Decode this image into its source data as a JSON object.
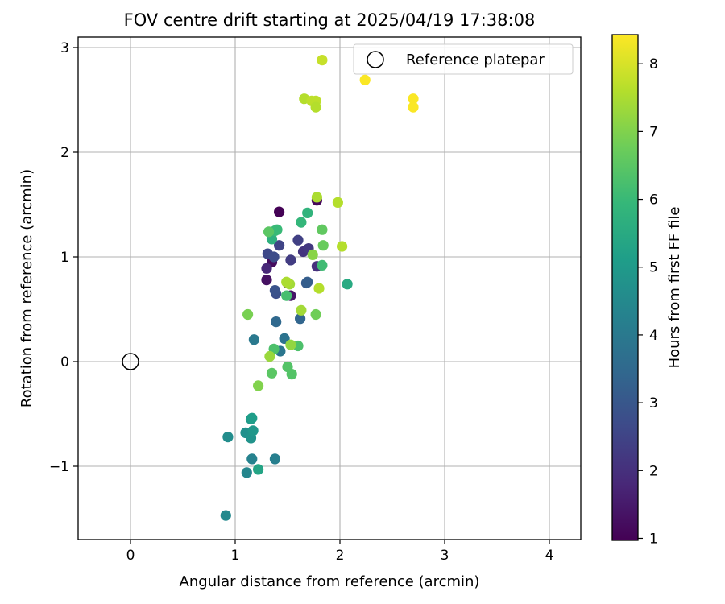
{
  "chart_data": {
    "type": "scatter",
    "title": "FOV centre drift starting at 2025/04/19 17:38:08",
    "xlabel": "Angular distance from reference (arcmin)",
    "ylabel": "Rotation from reference (arcmin)",
    "xlim": [
      -0.5,
      4.3
    ],
    "ylim": [
      -1.7,
      3.1
    ],
    "xticks": [
      0,
      1,
      2,
      3,
      4
    ],
    "yticks": [
      -1,
      0,
      1,
      2,
      3
    ],
    "xtick_labels": [
      "0",
      "1",
      "2",
      "3",
      "4"
    ],
    "ytick_labels": [
      "−1",
      "0",
      "1",
      "2",
      "3"
    ],
    "grid": true,
    "legend": {
      "placement": "top-right",
      "entries": [
        {
          "label": "Reference platepar",
          "marker": "open-circle"
        }
      ]
    },
    "reference_point": {
      "name": "Reference platepar",
      "x": 0.0,
      "y": 0.0
    },
    "colorbar": {
      "label": "Hours from first FF file",
      "colormap": "viridis",
      "range": [
        0.97,
        8.43
      ],
      "ticks": [
        1,
        2,
        3,
        4,
        5,
        6,
        7,
        8
      ],
      "tick_labels": [
        "1",
        "2",
        "3",
        "4",
        "5",
        "6",
        "7",
        "8"
      ]
    },
    "points": [
      {
        "x": 1.42,
        "y": 1.43,
        "c": 1.0
      },
      {
        "x": 1.78,
        "y": 1.54,
        "c": 1.1
      },
      {
        "x": 1.35,
        "y": 0.95,
        "c": 1.2
      },
      {
        "x": 1.3,
        "y": 0.78,
        "c": 1.3
      },
      {
        "x": 1.53,
        "y": 0.63,
        "c": 1.4
      },
      {
        "x": 1.5,
        "y": 0.75,
        "c": 1.5
      },
      {
        "x": 1.3,
        "y": 0.89,
        "c": 1.8
      },
      {
        "x": 1.78,
        "y": 0.91,
        "c": 2.0
      },
      {
        "x": 1.65,
        "y": 1.05,
        "c": 2.1
      },
      {
        "x": 1.7,
        "y": 1.08,
        "c": 2.2
      },
      {
        "x": 1.53,
        "y": 0.97,
        "c": 2.3
      },
      {
        "x": 1.6,
        "y": 1.16,
        "c": 2.4
      },
      {
        "x": 1.42,
        "y": 1.11,
        "c": 2.5
      },
      {
        "x": 1.31,
        "y": 1.03,
        "c": 2.6
      },
      {
        "x": 1.37,
        "y": 1.0,
        "c": 2.7
      },
      {
        "x": 1.39,
        "y": 0.65,
        "c": 2.8
      },
      {
        "x": 1.38,
        "y": 0.68,
        "c": 2.9
      },
      {
        "x": 1.68,
        "y": 0.75,
        "c": 3.1
      },
      {
        "x": 1.69,
        "y": 0.76,
        "c": 3.2
      },
      {
        "x": 1.62,
        "y": 0.41,
        "c": 3.4
      },
      {
        "x": 1.39,
        "y": 0.38,
        "c": 3.5
      },
      {
        "x": 1.47,
        "y": 0.22,
        "c": 3.8
      },
      {
        "x": 1.43,
        "y": 0.1,
        "c": 3.9
      },
      {
        "x": 1.18,
        "y": 0.21,
        "c": 4.0
      },
      {
        "x": 1.38,
        "y": -0.93,
        "c": 4.2
      },
      {
        "x": 1.16,
        "y": -0.93,
        "c": 4.3
      },
      {
        "x": 1.11,
        "y": -1.06,
        "c": 4.4
      },
      {
        "x": 0.91,
        "y": -1.47,
        "c": 4.5
      },
      {
        "x": 0.93,
        "y": -0.72,
        "c": 4.6
      },
      {
        "x": 1.1,
        "y": -0.68,
        "c": 4.7
      },
      {
        "x": 1.15,
        "y": -0.73,
        "c": 4.8
      },
      {
        "x": 1.17,
        "y": -0.66,
        "c": 4.9
      },
      {
        "x": 1.15,
        "y": -0.55,
        "c": 5.0
      },
      {
        "x": 1.16,
        "y": -0.54,
        "c": 5.1
      },
      {
        "x": 1.22,
        "y": -1.03,
        "c": 5.3
      },
      {
        "x": 2.07,
        "y": 0.74,
        "c": 5.5
      },
      {
        "x": 1.35,
        "y": 1.17,
        "c": 5.7
      },
      {
        "x": 1.69,
        "y": 1.42,
        "c": 5.8
      },
      {
        "x": 1.63,
        "y": 1.33,
        "c": 5.9
      },
      {
        "x": 1.38,
        "y": 1.25,
        "c": 6.0
      },
      {
        "x": 1.4,
        "y": 1.26,
        "c": 6.0
      },
      {
        "x": 1.83,
        "y": 0.92,
        "c": 6.1
      },
      {
        "x": 1.49,
        "y": 0.63,
        "c": 6.2
      },
      {
        "x": 1.6,
        "y": 0.15,
        "c": 6.3
      },
      {
        "x": 1.37,
        "y": 0.12,
        "c": 6.3
      },
      {
        "x": 1.5,
        "y": -0.05,
        "c": 6.4
      },
      {
        "x": 1.54,
        "y": -0.12,
        "c": 6.4
      },
      {
        "x": 1.35,
        "y": -0.11,
        "c": 6.5
      },
      {
        "x": 1.32,
        "y": 1.24,
        "c": 6.5
      },
      {
        "x": 1.83,
        "y": 1.26,
        "c": 6.6
      },
      {
        "x": 1.84,
        "y": 1.11,
        "c": 6.7
      },
      {
        "x": 1.77,
        "y": 0.45,
        "c": 6.8
      },
      {
        "x": 1.12,
        "y": 0.45,
        "c": 6.9
      },
      {
        "x": 1.22,
        "y": -0.23,
        "c": 7.0
      },
      {
        "x": 1.74,
        "y": 1.02,
        "c": 7.1
      },
      {
        "x": 1.53,
        "y": 0.16,
        "c": 7.2
      },
      {
        "x": 1.33,
        "y": 0.05,
        "c": 7.3
      },
      {
        "x": 1.63,
        "y": 0.49,
        "c": 7.4
      },
      {
        "x": 1.52,
        "y": 0.74,
        "c": 7.4
      },
      {
        "x": 1.49,
        "y": 0.76,
        "c": 7.5
      },
      {
        "x": 1.8,
        "y": 0.7,
        "c": 7.6
      },
      {
        "x": 2.02,
        "y": 1.1,
        "c": 7.6
      },
      {
        "x": 1.98,
        "y": 1.52,
        "c": 7.6
      },
      {
        "x": 1.78,
        "y": 1.57,
        "c": 7.5
      },
      {
        "x": 1.66,
        "y": 2.51,
        "c": 7.6
      },
      {
        "x": 1.73,
        "y": 2.49,
        "c": 7.7
      },
      {
        "x": 1.77,
        "y": 2.49,
        "c": 7.7
      },
      {
        "x": 1.77,
        "y": 2.43,
        "c": 7.6
      },
      {
        "x": 1.83,
        "y": 2.88,
        "c": 7.8
      },
      {
        "x": 2.24,
        "y": 2.69,
        "c": 8.4
      },
      {
        "x": 2.7,
        "y": 2.51,
        "c": 8.4
      },
      {
        "x": 2.7,
        "y": 2.43,
        "c": 8.4
      }
    ]
  }
}
